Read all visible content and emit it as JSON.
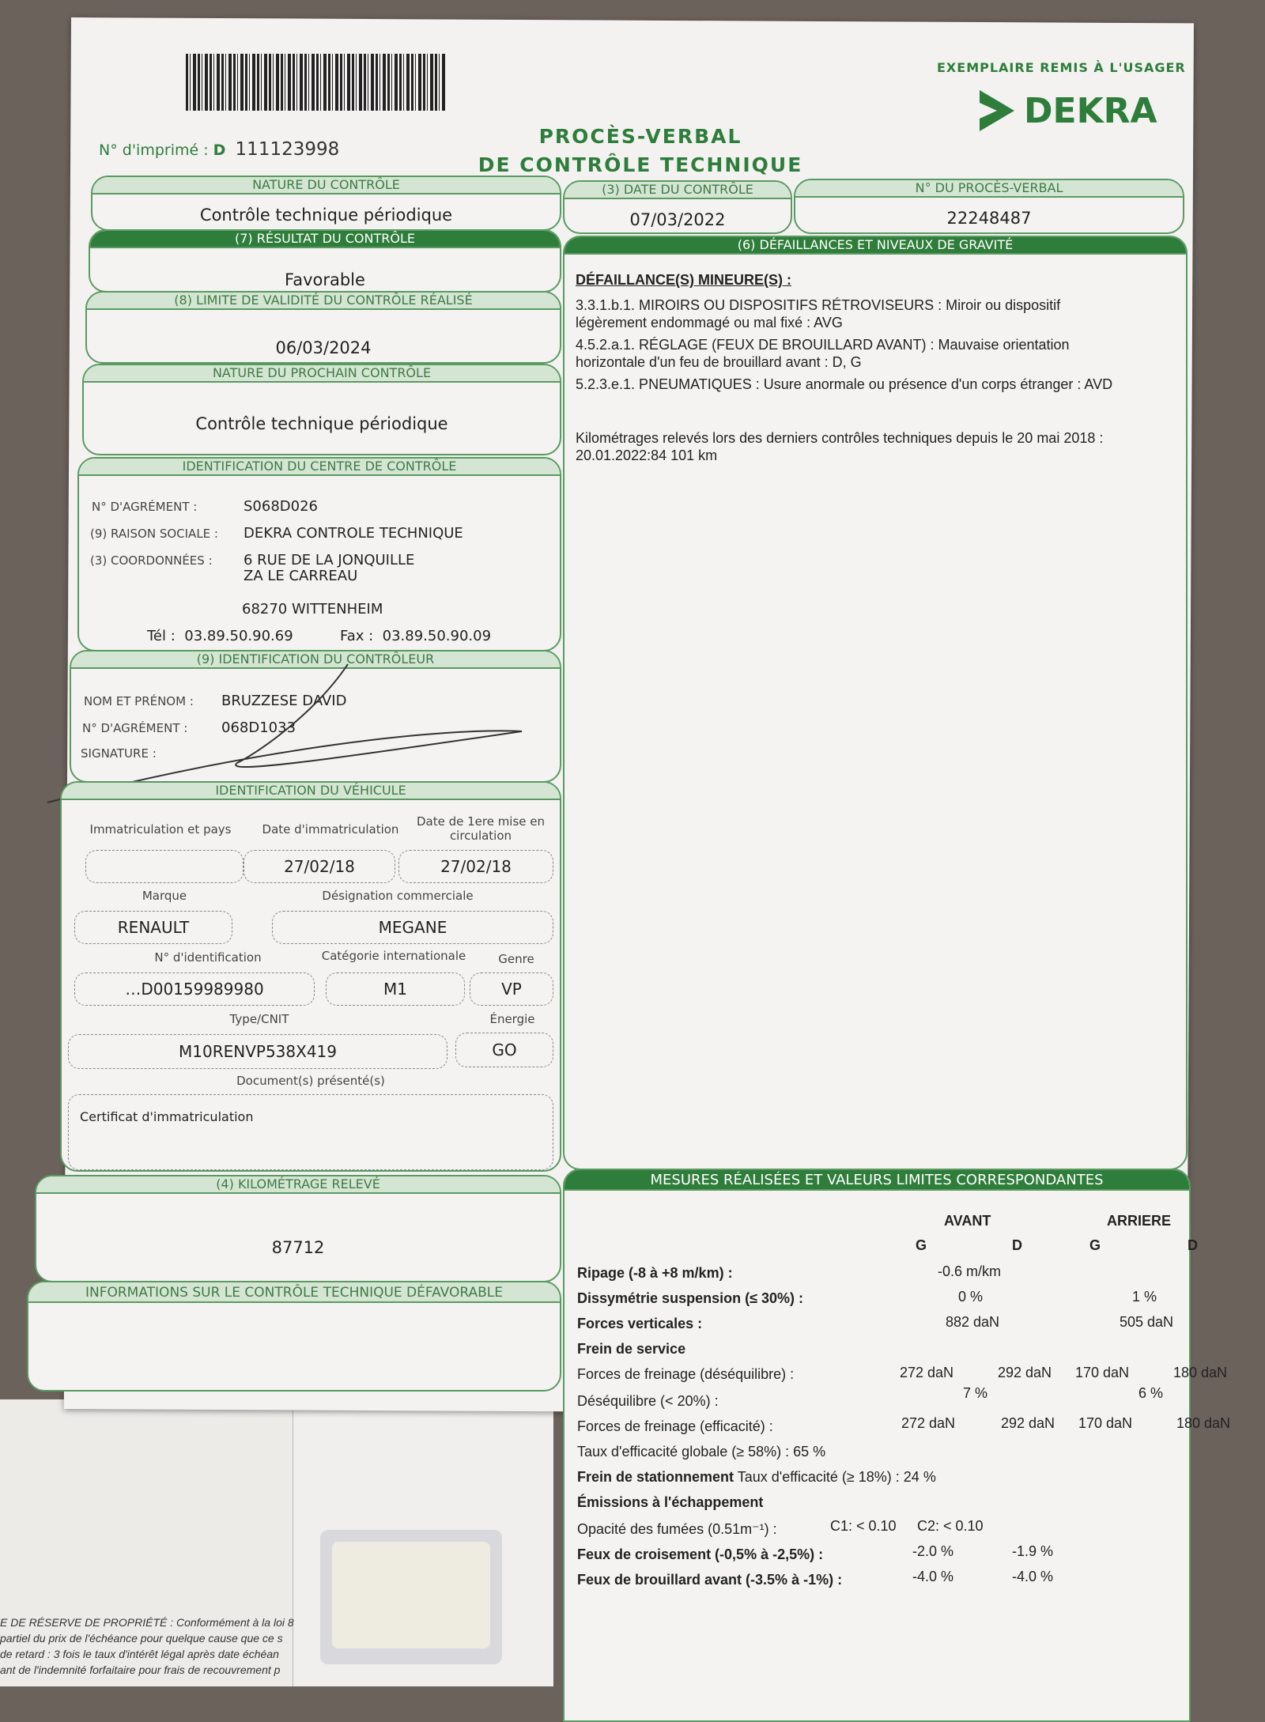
{
  "header": {
    "copy_label": "EXEMPLAIRE REMIS À L'USAGER",
    "brand": "DEKRA",
    "print_no_label": "N° d'imprimé :",
    "print_no_prefix": "D",
    "print_no": "111123998",
    "title_line1": "PROCÈS-VERBAL",
    "title_line2": "DE CONTRÔLE TECHNIQUE"
  },
  "nature": {
    "label": "NATURE DU CONTRÔLE",
    "value": "Contrôle technique périodique"
  },
  "date": {
    "label": "(3) DATE DU CONTRÔLE",
    "value": "07/03/2022"
  },
  "pv": {
    "label": "N° DU PROCÈS-VERBAL",
    "value": "22248487"
  },
  "result": {
    "label": "(7) RÉSULTAT DU CONTRÔLE",
    "value": "Favorable"
  },
  "validity": {
    "label": "(8) LIMITE DE VALIDITÉ DU CONTRÔLE RÉALISÉ",
    "value": "06/03/2024"
  },
  "next": {
    "label": "NATURE DU PROCHAIN CONTRÔLE",
    "value": "Contrôle technique périodique"
  },
  "centre": {
    "label": "IDENTIFICATION DU CENTRE DE CONTRÔLE",
    "agrement_label": "N° D'AGRÉMENT :",
    "agrement": "S068D026",
    "raison_label": "(9) RAISON SOCIALE :",
    "raison": "DEKRA CONTROLE TECHNIQUE",
    "coord_label": "(3) COORDONNÉES :",
    "addr1": "6 RUE DE LA JONQUILLE",
    "addr2": "ZA LE CARREAU",
    "addr3": "68270 WITTENHEIM",
    "tel_label": "Tél :",
    "tel": "03.89.50.90.69",
    "fax_label": "Fax :",
    "fax": "03.89.50.90.09"
  },
  "controleur": {
    "label": "(9) IDENTIFICATION DU CONTRÔLEUR",
    "name_label": "NOM ET PRÉNOM :",
    "name": "BRUZZESE DAVID",
    "agrement_label": "N° D'AGRÉMENT :",
    "agrement": "068D1033",
    "signature_label": "SIGNATURE :"
  },
  "vehicle": {
    "label": "IDENTIFICATION DU VÉHICULE",
    "immat_label": "Immatriculation et pays",
    "immat": "",
    "date_immat_label": "Date d'immatriculation",
    "date_immat": "27/02/18",
    "first_label": "Date de 1ere mise en circulation",
    "first": "27/02/18",
    "marque_label": "Marque",
    "marque": "RENAULT",
    "designation_label": "Désignation commerciale",
    "designation": "MEGANE",
    "vin_label": "N° d'identification",
    "vin": "…D00159989980",
    "cat_label": "Catégorie internationale",
    "cat": "M1",
    "genre_label": "Genre",
    "genre": "VP",
    "type_label": "Type/CNIT",
    "type": "M10RENVP538X419",
    "energie_label": "Énergie",
    "energie": "GO",
    "docs_label": "Document(s) présenté(s)",
    "docs": "Certificat d'immatriculation"
  },
  "km": {
    "label": "(4) KILOMÉTRAGE RELEVÉ",
    "value": "87712"
  },
  "defav": {
    "label": "INFORMATIONS SUR LE CONTRÔLE TECHNIQUE DÉFAVORABLE"
  },
  "defaillances": {
    "label": "(6) DÉFAILLANCES ET NIVEAUX DE GRAVITÉ",
    "heading": "DÉFAILLANCE(S) MINEURE(S) :",
    "items": [
      {
        "line1": "3.3.1.b.1. MIROIRS OU DISPOSITIFS RÉTROVISEURS : Miroir ou dispositif",
        "line2": "légèrement endommagé ou mal fixé  : AVG"
      },
      {
        "line1": "4.5.2.a.1. RÉGLAGE (FEUX DE BROUILLARD AVANT) : Mauvaise orientation",
        "line2": "horizontale d'un feu de brouillard avant  : D, G"
      },
      {
        "line1": "5.2.3.e.1. PNEUMATIQUES : Usure anormale ou présence d'un corps étranger : AVD",
        "line2": ""
      }
    ],
    "km_history_label": "Kilométrages relevés lors des derniers contrôles techniques depuis le 20 mai 2018 :",
    "km_history": "20.01.2022:84 101 km"
  },
  "mesures": {
    "label": "MESURES RÉALISÉES ET VALEURS LIMITES CORRESPONDANTES",
    "avant": "AVANT",
    "arriere": "ARRIERE",
    "g": "G",
    "d": "D",
    "ripage_label": "Ripage (-8 à +8 m/km) :",
    "ripage": "-0.6 m/km",
    "dissym_label": "Dissymétrie suspension (≤ 30%) :",
    "dissym_av": "0 %",
    "dissym_ar": "1 %",
    "fv_label": "Forces verticales :",
    "fv_av": "882 daN",
    "fv_ar": "505 daN",
    "frein_service": "Frein de service",
    "ff1_label": "Forces de freinage (déséquilibre) :",
    "ff1": [
      "272 daN",
      "292 daN",
      "170 daN",
      "180 daN"
    ],
    "deseq_label": "Déséquilibre (< 20%) :",
    "deseq_av": "7 %",
    "deseq_ar": "6 %",
    "ff2_label": "Forces de freinage (efficacité) :",
    "ff2": [
      "272 daN",
      "292 daN",
      "170 daN",
      "180 daN"
    ],
    "taux_global": "Taux d'efficacité globale (≥ 58%) : 65 %",
    "stat_label": "Frein de stationnement",
    "stat": "Taux d'efficacité (≥ 18%) : 24 %",
    "emissions": "Émissions à l'échappement",
    "opacite_label": "Opacité des fumées (0.51m⁻¹) :",
    "c1": "C1: < 0.10",
    "c2": "C2: < 0.10",
    "croisement_label": "Feux de croisement (-0,5% à -2,5%) :",
    "croisement": [
      "-2.0 %",
      "-1.9 %"
    ],
    "brouillard_label": "Feux de brouillard avant (-3.5% à -1%) :",
    "brouillard": [
      "-4.0 %",
      "-4.0 %"
    ]
  },
  "legal": {
    "line1": "E DE RÉSERVE DE PROPRIÉTÉ : Conformément à la loi 8",
    "line2": "partiel du prix de l'échéance pour quelque cause que ce s",
    "line3": " de retard : 3 fois le taux d'intérêt légal après date échéan",
    "line4": "ant de l'indemnité forfaitaire pour frais de recouvrement p"
  }
}
